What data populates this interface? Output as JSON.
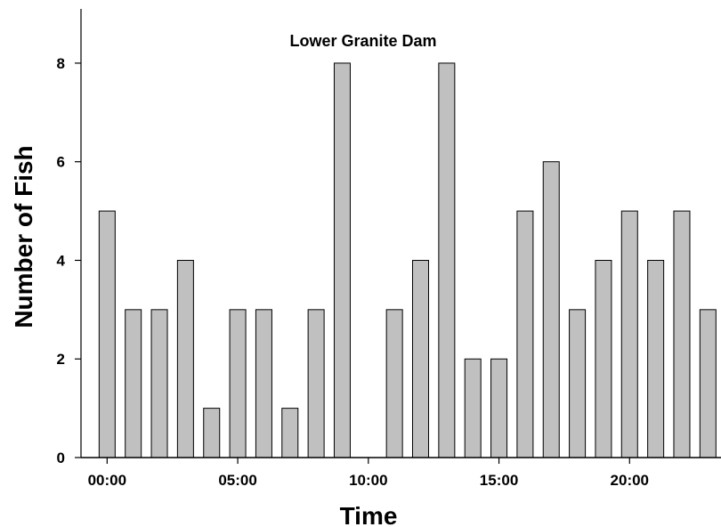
{
  "chart_data": {
    "type": "bar",
    "title": "Lower Granite Dam",
    "xlabel": "Time",
    "ylabel": "Number of Fish",
    "x_hours": [
      0,
      1,
      2,
      3,
      4,
      5,
      6,
      7,
      8,
      9,
      10,
      11,
      12,
      13,
      14,
      15,
      16,
      17,
      18,
      19,
      20,
      21,
      22,
      23
    ],
    "values": [
      5,
      3,
      3,
      4,
      1,
      3,
      3,
      1,
      3,
      8,
      0,
      3,
      4,
      8,
      2,
      2,
      5,
      6,
      3,
      4,
      5,
      4,
      5,
      3
    ],
    "x_tick_labels": [
      "00:00",
      "05:00",
      "10:00",
      "15:00",
      "20:00"
    ],
    "x_tick_hours": [
      0,
      5,
      10,
      15,
      20
    ],
    "y_ticks": [
      0,
      2,
      4,
      6,
      8
    ],
    "ylim": [
      0,
      9.1
    ],
    "xlim": [
      -1,
      23.5
    ],
    "grid": false,
    "bar_color": "#c0c0c0",
    "edge_color": "#000000"
  }
}
